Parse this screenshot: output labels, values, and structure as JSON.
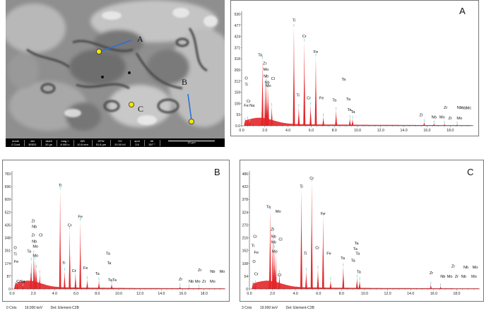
{
  "sem": {
    "point_labels": [
      "A",
      "B",
      "C"
    ],
    "info_bar": [
      {
        "top": "mode",
        "bottom": "Z Cont"
      },
      {
        "top": "det",
        "bottom": "BSED"
      },
      {
        "top": "dwell",
        "bottom": "20 µs"
      },
      {
        "top": "mag □",
        "bottom": "8 000 x"
      },
      {
        "top": "WD",
        "bottom": "10.6 mm"
      },
      {
        "top": "HFW",
        "bottom": "51.8 µm"
      },
      {
        "top": "HV",
        "bottom": "20.00 kV"
      },
      {
        "top": "spot",
        "bottom": "3.5"
      },
      {
        "top": "tilt",
        "bottom": "357 °"
      }
    ],
    "scale_bar": "10 µm"
  },
  "chart_data": [
    {
      "type": "bar",
      "panel": "A",
      "y_ticks": [
        "530",
        "477",
        "424",
        "371",
        "318",
        "265",
        "212",
        "159",
        "106",
        "53",
        "0.0"
      ],
      "x_ticks": [
        "0.0",
        "2.0",
        "4.0",
        "6.0",
        "8.0",
        "10.0",
        "12.0",
        "14.0",
        "16.0",
        "18.0"
      ],
      "xlim": [
        0,
        20
      ],
      "ylim": [
        0,
        530
      ],
      "peaks": [
        {
          "x": 0.3,
          "y": 25
        },
        {
          "x": 0.52,
          "y": 30
        },
        {
          "x": 0.7,
          "y": 20
        },
        {
          "x": 1.74,
          "y": 50
        },
        {
          "x": 1.8,
          "y": 318
        },
        {
          "x": 2.04,
          "y": 225
        },
        {
          "x": 2.17,
          "y": 210
        },
        {
          "x": 2.29,
          "y": 180
        },
        {
          "x": 2.6,
          "y": 95
        },
        {
          "x": 4.51,
          "y": 470
        },
        {
          "x": 4.93,
          "y": 90
        },
        {
          "x": 5.41,
          "y": 400
        },
        {
          "x": 5.95,
          "y": 100
        },
        {
          "x": 6.4,
          "y": 330
        },
        {
          "x": 7.05,
          "y": 45
        },
        {
          "x": 8.15,
          "y": 75
        },
        {
          "x": 9.34,
          "y": 38
        },
        {
          "x": 9.57,
          "y": 34
        },
        {
          "x": 15.75,
          "y": 18
        },
        {
          "x": 16.6,
          "y": 12
        },
        {
          "x": 17.5,
          "y": 10
        },
        {
          "x": 18.6,
          "y": 8
        }
      ],
      "labels": [
        {
          "t": "Ti",
          "x": 4.51,
          "y": 495
        },
        {
          "t": "Cr",
          "x": 5.41,
          "y": 420
        },
        {
          "t": "Fe",
          "x": 6.4,
          "y": 345
        },
        {
          "t": "Ta",
          "x": 1.6,
          "y": 330
        },
        {
          "t": "Zr",
          "x": 2.0,
          "y": 290
        },
        {
          "t": "Mo",
          "x": 2.1,
          "y": 262
        },
        {
          "t": "Nb",
          "x": 2.1,
          "y": 230
        },
        {
          "t": "Cl",
          "x": 2.7,
          "y": 218
        },
        {
          "t": "Nb",
          "x": 2.2,
          "y": 200
        },
        {
          "t": "Mo",
          "x": 2.3,
          "y": 185
        },
        {
          "t": "O",
          "x": 0.4,
          "y": 220
        },
        {
          "t": "Ti",
          "x": 0.4,
          "y": 190
        },
        {
          "t": "Cr",
          "x": 0.6,
          "y": 110
        },
        {
          "t": "Fe",
          "x": 0.4,
          "y": 90
        },
        {
          "t": "Na",
          "x": 0.9,
          "y": 90
        },
        {
          "t": "Ti",
          "x": 4.85,
          "y": 140
        },
        {
          "t": "Cr",
          "x": 5.8,
          "y": 125
        },
        {
          "t": "Fe",
          "x": 6.9,
          "y": 125
        },
        {
          "t": "Ta",
          "x": 8.0,
          "y": 115
        },
        {
          "t": "Ta",
          "x": 8.8,
          "y": 215
        },
        {
          "t": "Ta",
          "x": 9.2,
          "y": 120
        },
        {
          "t": "Ta",
          "x": 9.3,
          "y": 70
        },
        {
          "t": "Ta",
          "x": 9.6,
          "y": 60
        },
        {
          "t": "Zr",
          "x": 15.5,
          "y": 45
        },
        {
          "t": "Nb",
          "x": 16.6,
          "y": 35
        },
        {
          "t": "Mo",
          "x": 17.3,
          "y": 35
        },
        {
          "t": "Zr",
          "x": 17.6,
          "y": 80
        },
        {
          "t": "Zr",
          "x": 18.0,
          "y": 30
        },
        {
          "t": "Nb",
          "x": 18.8,
          "y": 80
        },
        {
          "t": "Mo",
          "x": 18.8,
          "y": 30
        },
        {
          "t": "Nb",
          "x": 19.2,
          "y": 78
        },
        {
          "t": "Mc",
          "x": 19.6,
          "y": 78
        }
      ],
      "title": "A"
    },
    {
      "type": "bar",
      "panel": "B",
      "y_ticks": [
        "783",
        "696",
        "609",
        "522",
        "435",
        "348",
        "261",
        "174",
        "87",
        "0"
      ],
      "x_ticks": [
        "0.0",
        "2.0",
        "4.0",
        "6.0",
        "8.0",
        "10.0",
        "12.0",
        "14.0",
        "16.0",
        "18.0"
      ],
      "xlim": [
        0,
        20
      ],
      "ylim": [
        0,
        810
      ],
      "peaks": [
        {
          "x": 0.3,
          "y": 30
        },
        {
          "x": 0.52,
          "y": 35
        },
        {
          "x": 1.04,
          "y": 20
        },
        {
          "x": 1.74,
          "y": 90
        },
        {
          "x": 1.8,
          "y": 200
        },
        {
          "x": 2.04,
          "y": 250
        },
        {
          "x": 2.17,
          "y": 210
        },
        {
          "x": 2.29,
          "y": 150
        },
        {
          "x": 2.6,
          "y": 110
        },
        {
          "x": 4.51,
          "y": 700
        },
        {
          "x": 4.93,
          "y": 130
        },
        {
          "x": 5.41,
          "y": 420
        },
        {
          "x": 5.95,
          "y": 120
        },
        {
          "x": 6.4,
          "y": 480
        },
        {
          "x": 7.05,
          "y": 70
        },
        {
          "x": 8.15,
          "y": 60
        },
        {
          "x": 9.34,
          "y": 40
        },
        {
          "x": 15.75,
          "y": 20
        },
        {
          "x": 16.6,
          "y": 12
        },
        {
          "x": 17.5,
          "y": 10
        }
      ],
      "labels": [
        {
          "t": "Ti",
          "x": 4.51,
          "y": 720
        },
        {
          "t": "Cr",
          "x": 5.41,
          "y": 440
        },
        {
          "t": "Fe",
          "x": 6.4,
          "y": 500
        },
        {
          "t": "Zr",
          "x": 2.0,
          "y": 470
        },
        {
          "t": "Nb",
          "x": 2.1,
          "y": 430
        },
        {
          "t": "Zr",
          "x": 2.0,
          "y": 370
        },
        {
          "t": "Cl",
          "x": 2.7,
          "y": 370
        },
        {
          "t": "Nb",
          "x": 2.1,
          "y": 325
        },
        {
          "t": "Mo",
          "x": 2.2,
          "y": 290
        },
        {
          "t": "Ta",
          "x": 1.6,
          "y": 255
        },
        {
          "t": "Mo",
          "x": 2.2,
          "y": 225
        },
        {
          "t": "O",
          "x": 0.3,
          "y": 280
        },
        {
          "t": "Ti",
          "x": 0.3,
          "y": 235
        },
        {
          "t": "Fe",
          "x": 0.4,
          "y": 185
        },
        {
          "t": "Cr",
          "x": 0.6,
          "y": 45
        },
        {
          "t": "Na",
          "x": 1.0,
          "y": 45
        },
        {
          "t": "Ti",
          "x": 4.85,
          "y": 175
        },
        {
          "t": "Cr",
          "x": 5.8,
          "y": 120
        },
        {
          "t": "Fe",
          "x": 6.9,
          "y": 140
        },
        {
          "t": "Ta",
          "x": 8.0,
          "y": 100
        },
        {
          "t": "Ta",
          "x": 9.0,
          "y": 240
        },
        {
          "t": "Ta",
          "x": 9.1,
          "y": 175
        },
        {
          "t": "Ta",
          "x": 9.2,
          "y": 55
        },
        {
          "t": "Ta",
          "x": 9.6,
          "y": 55
        },
        {
          "t": "Zr",
          "x": 15.8,
          "y": 60
        },
        {
          "t": "Nb",
          "x": 16.8,
          "y": 45
        },
        {
          "t": "Mo",
          "x": 17.4,
          "y": 45
        },
        {
          "t": "Zr",
          "x": 18.0,
          "y": 45
        },
        {
          "t": "Mo",
          "x": 18.8,
          "y": 45
        },
        {
          "t": "Zr",
          "x": 17.6,
          "y": 125
        },
        {
          "t": "Nb",
          "x": 18.8,
          "y": 115
        },
        {
          "t": "Mo",
          "x": 19.7,
          "y": 115
        }
      ],
      "title": "B",
      "status": [
        "0 Cnts",
        "19.000 keV",
        "Det: Element-C2B"
      ]
    },
    {
      "type": "bar",
      "panel": "C",
      "y_ticks": [
        "486",
        "432",
        "378",
        "324",
        "270",
        "216",
        "162",
        "108",
        "54",
        "0"
      ],
      "x_ticks": [
        "0.0",
        "2.0",
        "4.0",
        "6.0",
        "8.0",
        "10.0",
        "12.0",
        "14.0",
        "16.0",
        "18.0"
      ],
      "xlim": [
        0,
        20
      ],
      "ylim": [
        0,
        505
      ],
      "peaks": [
        {
          "x": 0.3,
          "y": 20
        },
        {
          "x": 0.52,
          "y": 25
        },
        {
          "x": 1.74,
          "y": 60
        },
        {
          "x": 1.8,
          "y": 350
        },
        {
          "x": 2.04,
          "y": 260
        },
        {
          "x": 2.17,
          "y": 180
        },
        {
          "x": 2.29,
          "y": 150
        },
        {
          "x": 2.6,
          "y": 70
        },
        {
          "x": 4.51,
          "y": 440
        },
        {
          "x": 4.93,
          "y": 80
        },
        {
          "x": 5.41,
          "y": 470
        },
        {
          "x": 5.95,
          "y": 90
        },
        {
          "x": 6.4,
          "y": 320
        },
        {
          "x": 7.05,
          "y": 40
        },
        {
          "x": 8.15,
          "y": 100
        },
        {
          "x": 9.34,
          "y": 50
        },
        {
          "x": 9.57,
          "y": 40
        },
        {
          "x": 15.75,
          "y": 20
        },
        {
          "x": 16.6,
          "y": 12
        }
      ],
      "labels": [
        {
          "t": "Cr",
          "x": 5.41,
          "y": 480
        },
        {
          "t": "Ti",
          "x": 4.51,
          "y": 445
        },
        {
          "t": "Fe",
          "x": 6.4,
          "y": 325
        },
        {
          "t": "Ta",
          "x": 1.65,
          "y": 355
        },
        {
          "t": "Mo",
          "x": 2.5,
          "y": 335
        },
        {
          "t": "Zr",
          "x": 2.0,
          "y": 255
        },
        {
          "t": "Nb",
          "x": 2.1,
          "y": 225
        },
        {
          "t": "Cl",
          "x": 2.7,
          "y": 212
        },
        {
          "t": "Nb",
          "x": 2.1,
          "y": 200
        },
        {
          "t": "Mo",
          "x": 2.2,
          "y": 160
        },
        {
          "t": "Cr",
          "x": 0.5,
          "y": 225
        },
        {
          "t": "Ti",
          "x": 0.3,
          "y": 185
        },
        {
          "t": "Fe",
          "x": 0.6,
          "y": 155
        },
        {
          "t": "O",
          "x": 0.4,
          "y": 115
        },
        {
          "t": "Cr",
          "x": 0.6,
          "y": 60
        },
        {
          "t": "Cl",
          "x": 2.6,
          "y": 55
        },
        {
          "t": "Ti",
          "x": 4.85,
          "y": 150
        },
        {
          "t": "Cr",
          "x": 5.9,
          "y": 175
        },
        {
          "t": "Fe",
          "x": 6.9,
          "y": 150
        },
        {
          "t": "Ta",
          "x": 8.1,
          "y": 130
        },
        {
          "t": "Ta",
          "x": 9.3,
          "y": 195
        },
        {
          "t": "Ta",
          "x": 9.2,
          "y": 170
        },
        {
          "t": "Ta",
          "x": 9.4,
          "y": 150
        },
        {
          "t": "Ta",
          "x": 9.0,
          "y": 120
        },
        {
          "t": "Ta",
          "x": 9.5,
          "y": 70
        },
        {
          "t": "Zr",
          "x": 15.8,
          "y": 65
        },
        {
          "t": "Nb",
          "x": 16.8,
          "y": 50
        },
        {
          "t": "Mo",
          "x": 17.4,
          "y": 50
        },
        {
          "t": "Zr",
          "x": 18.0,
          "y": 50
        },
        {
          "t": "Nb",
          "x": 18.6,
          "y": 50
        },
        {
          "t": "Mo",
          "x": 19.5,
          "y": 50
        },
        {
          "t": "Zr",
          "x": 17.7,
          "y": 95
        },
        {
          "t": "Nb",
          "x": 18.8,
          "y": 90
        },
        {
          "t": "Mo",
          "x": 19.6,
          "y": 90
        }
      ],
      "title": "C",
      "status": [
        "3 Cnts",
        "19.000 keV",
        "Det: Element-C2B"
      ]
    }
  ]
}
